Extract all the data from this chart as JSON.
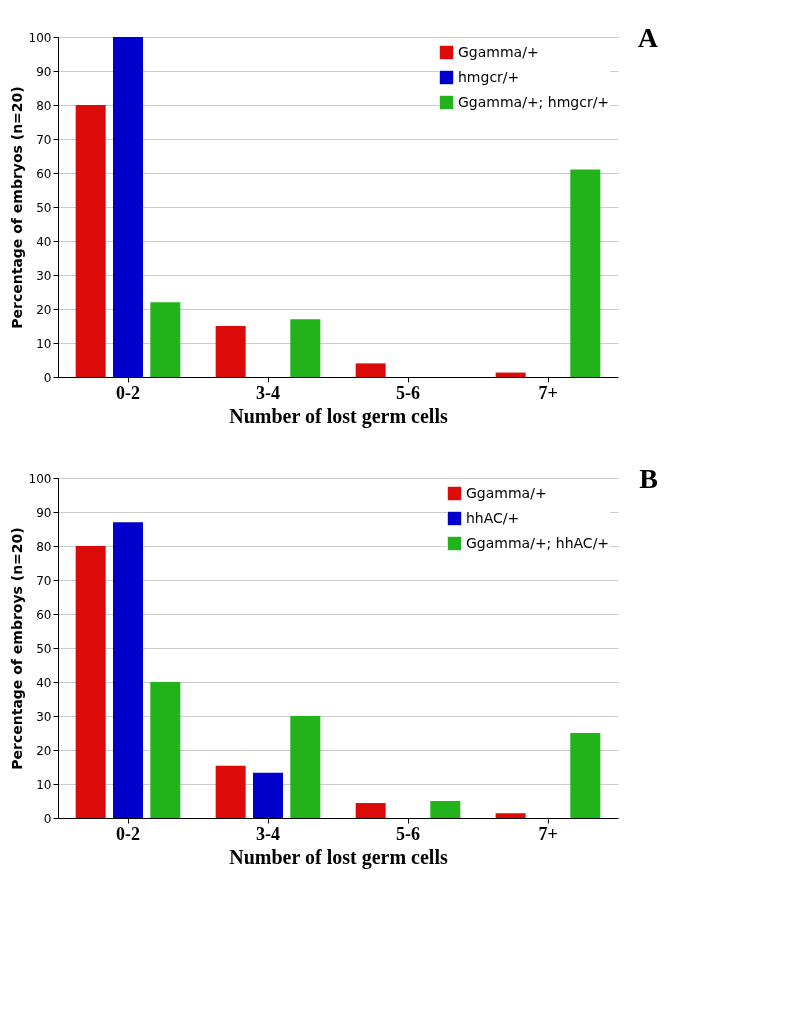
{
  "chart_data": [
    {
      "type": "bar",
      "xlabel": "Number of lost germ cells",
      "ylabel": "Percentage of embryos (n=20)",
      "categories": [
        "0-2",
        "3-4",
        "5-6",
        "7+"
      ],
      "series": [
        {
          "name": "Ggamma/+",
          "color": "#dd0a0a",
          "values": [
            80,
            15,
            4,
            1.3
          ]
        },
        {
          "name": "hmgcr/+",
          "color": "#0000cc",
          "values": [
            100,
            0,
            0,
            0
          ]
        },
        {
          "name": "Ggamma/+; hmgcr/+",
          "color": "#22b21a",
          "values": [
            22,
            17,
            0,
            61
          ]
        }
      ],
      "ylim": [
        0,
        100
      ],
      "yticks": [
        0,
        10,
        20,
        30,
        40,
        50,
        60,
        70,
        80,
        90,
        100
      ],
      "grid": "y",
      "legend": "top right",
      "annotations": [
        "A"
      ]
    },
    {
      "type": "bar",
      "xlabel": "Number of lost germ cells",
      "ylabel": "Percentage of embroys (n=20)",
      "categories": [
        "0-2",
        "3-4",
        "5-6",
        "7+"
      ],
      "series": [
        {
          "name": "Ggamma/+",
          "color": "#dd0a0a",
          "values": [
            80,
            15.4,
            4.4,
            1.4
          ]
        },
        {
          "name": "hhAC/+",
          "color": "#0000cc",
          "values": [
            87,
            13.3,
            0,
            0
          ]
        },
        {
          "name": "Ggamma/+; hhAC/+",
          "color": "#22b21a",
          "values": [
            40,
            30,
            5,
            25
          ]
        }
      ],
      "ylim": [
        0,
        100
      ],
      "yticks": [
        0,
        10,
        20,
        30,
        40,
        50,
        60,
        70,
        80,
        90,
        100
      ],
      "grid": "y",
      "legend": "top right",
      "annotations": [
        "B"
      ]
    }
  ]
}
